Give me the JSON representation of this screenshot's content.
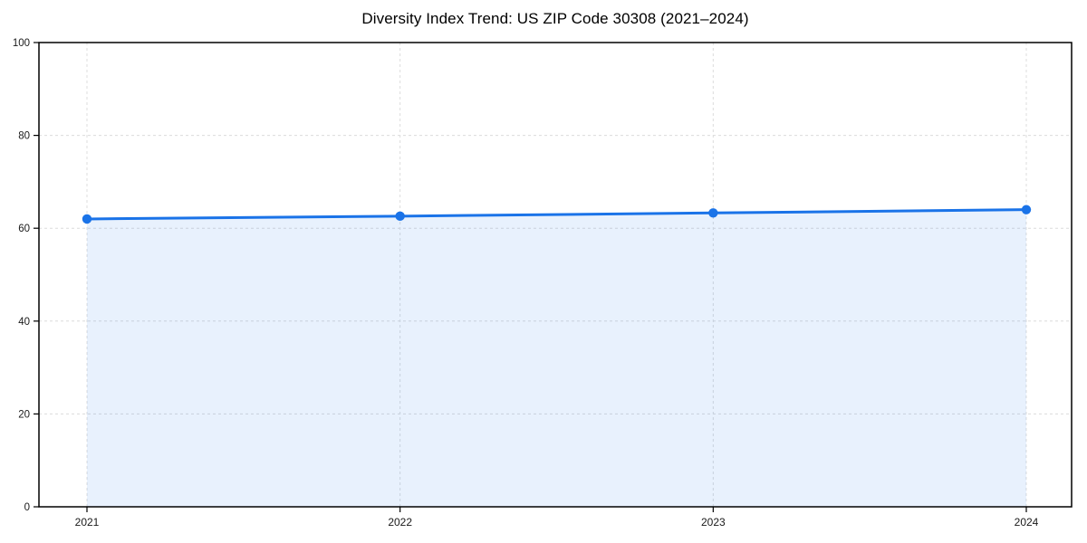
{
  "page": {
    "background": "#ffffff"
  },
  "chart_data": {
    "type": "line",
    "title": "Diversity Index Trend: US ZIP Code 30308 (2021–2024)",
    "x": [
      2021,
      2022,
      2023,
      2024
    ],
    "xticks": [
      "2021",
      "2022",
      "2023",
      "2024"
    ],
    "series": [
      {
        "name": "Diversity Index",
        "values": [
          62.0,
          62.6,
          63.3,
          64.0
        ]
      }
    ],
    "xlabel": "",
    "ylabel": "",
    "ylim": [
      0,
      100
    ],
    "yticks": [
      0,
      20,
      40,
      60,
      80,
      100
    ],
    "grid": "dashed-both-axes",
    "legend": "none",
    "area_fill": true,
    "marker": "circle",
    "colors": {
      "line": "#1a73e8",
      "marker": "#1a73e8",
      "fill": "rgba(26,115,232,0.10)",
      "grid": "#dcdcdc",
      "axis": "#000000",
      "text": "#1a1a1a"
    }
  }
}
